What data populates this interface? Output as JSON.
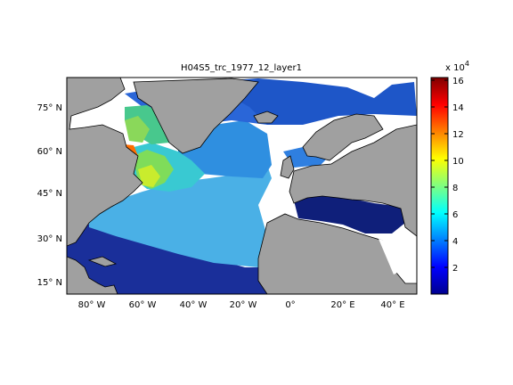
{
  "map": {
    "title": "H04S5_trc_1977_12_layer1",
    "lat_ticks": [
      {
        "label": "15° N"
      },
      {
        "label": "30° N"
      },
      {
        "label": "45° N"
      },
      {
        "label": "60° N"
      },
      {
        "label": "75° N"
      }
    ],
    "lon_ticks": [
      {
        "label": "80° W"
      },
      {
        "label": "60° W"
      },
      {
        "label": "40° W"
      },
      {
        "label": "20° W"
      },
      {
        "label": "0°"
      },
      {
        "label": "20° E"
      },
      {
        "label": "40° E"
      }
    ],
    "lon_range": [
      -90,
      48
    ],
    "lat_range": [
      10,
      85
    ],
    "land_color": "#a0a0a0",
    "missing_color": "#ffffff"
  },
  "colorbar": {
    "multiplier_base": "x 10",
    "multiplier_exp": "4",
    "ticks": [
      "2",
      "4",
      "6",
      "8",
      "10",
      "12",
      "14",
      "16"
    ],
    "range": [
      0,
      16.4
    ],
    "colormap": "jet"
  }
}
